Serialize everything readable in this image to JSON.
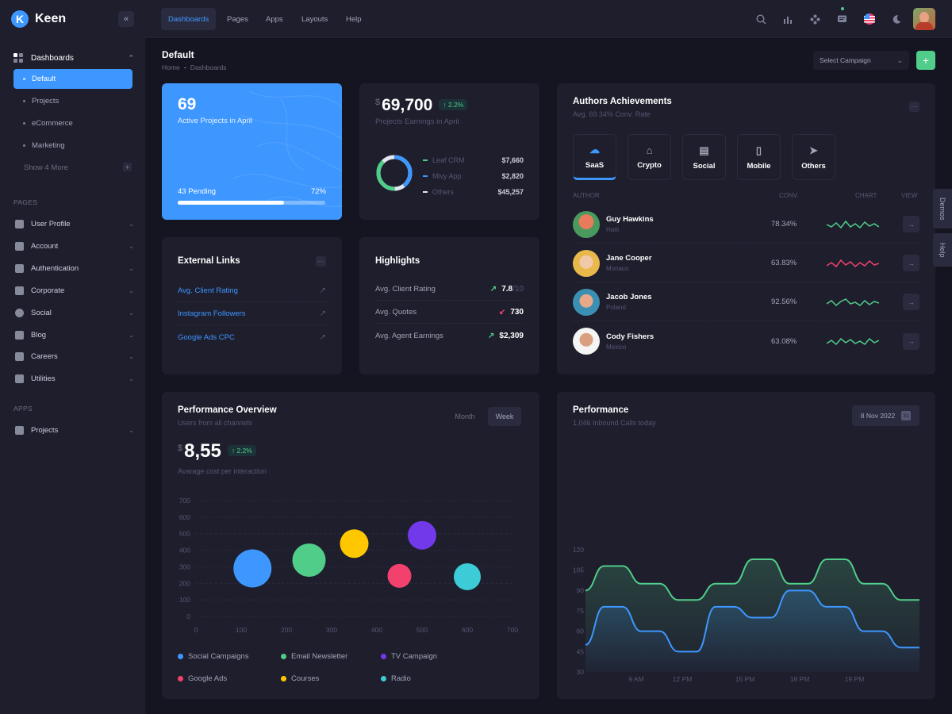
{
  "brand": {
    "name": "Keen",
    "logo_letter": "K"
  },
  "sidebar": {
    "dashboards_label": "Dashboards",
    "dashboards_sub": [
      "Default",
      "Projects",
      "eCommerce",
      "Marketing"
    ],
    "show_more": "Show 4 More",
    "pages_section": "PAGES",
    "pages_items": [
      "User Profile",
      "Account",
      "Authentication",
      "Corporate",
      "Social",
      "Blog",
      "Careers",
      "Utilities"
    ],
    "apps_section": "APPS",
    "apps_items": [
      "Projects"
    ]
  },
  "topbar": {
    "nav": [
      "Dashboards",
      "Pages",
      "Apps",
      "Layouts",
      "Help"
    ],
    "icons": [
      "search-icon",
      "chart-icon",
      "apps-icon",
      "chat-icon",
      "flag-icon",
      "moon-icon"
    ]
  },
  "page": {
    "title": "Default",
    "breadcrumb": [
      "Home",
      "Dashboards"
    ],
    "campaign_select": "Select Campaign",
    "add_button": "+"
  },
  "projects_card": {
    "count": "69",
    "label": "Active Projects in April",
    "pending": "43 Pending",
    "percent": "72%",
    "progress": 0.72
  },
  "earnings_card": {
    "currency": "$",
    "amount": "69,700",
    "badge": "2.2%",
    "label": "Projects Earnings in April",
    "items": [
      {
        "name": "Leaf CRM",
        "value": "$7,660",
        "color": "#50cd89"
      },
      {
        "name": "Mivy App",
        "value": "$2,820",
        "color": "#3e97ff"
      },
      {
        "name": "Others",
        "value": "$45,257",
        "color": "#e4e6ef"
      }
    ]
  },
  "external_links": {
    "title": "External Links",
    "links": [
      "Avg. Client Rating",
      "Instagram Followers",
      "Google Ads CPC"
    ]
  },
  "highlights": {
    "title": "Highlights",
    "rows": [
      {
        "label": "Avg. Client Rating",
        "value": "7.8",
        "suffix": "/10",
        "dir": "up"
      },
      {
        "label": "Avg. Quotes",
        "value": "730",
        "suffix": "",
        "dir": "down"
      },
      {
        "label": "Avg. Agent Earnings",
        "value": "$2,309",
        "suffix": "",
        "dir": "up"
      }
    ]
  },
  "authors": {
    "title": "Authors Achievements",
    "subtitle": "Avg. 69.34% Conv. Rate",
    "tabs": [
      "SaaS",
      "Crypto",
      "Social",
      "Mobile",
      "Others"
    ],
    "columns": [
      "AUTHOR",
      "CONV.",
      "CHART",
      "VIEW"
    ],
    "rows": [
      {
        "name": "Guy Hawkins",
        "country": "Haiti",
        "conv": "78.34%",
        "color": "#50cd89"
      },
      {
        "name": "Jane Cooper",
        "country": "Monaco",
        "conv": "63.83%",
        "color": "#f1416c"
      },
      {
        "name": "Jacob Jones",
        "country": "Poland",
        "conv": "92.56%",
        "color": "#50cd89"
      },
      {
        "name": "Cody Fishers",
        "country": "Mexico",
        "conv": "63.08%",
        "color": "#50cd89"
      }
    ]
  },
  "performance_overview": {
    "title": "Performance Overview",
    "subtitle": "Users from all channels",
    "toggle": [
      "Month",
      "Week"
    ],
    "currency": "$",
    "amount": "8,55",
    "badge": "2.2%",
    "caption": "Avarage cost per interaction"
  },
  "performance": {
    "title": "Performance",
    "subtitle": "1,046 Inbound Calls today",
    "date": "8 Nov 2022",
    "calendar_day": "31"
  },
  "side_tabs": [
    "Demos",
    "Help"
  ],
  "chart_data": [
    {
      "type": "scatter",
      "title": "",
      "xlim": [
        0,
        700
      ],
      "ylim": [
        0,
        700
      ],
      "xticks": [
        0,
        100,
        200,
        300,
        400,
        500,
        600,
        700
      ],
      "yticks": [
        0,
        100,
        200,
        300,
        400,
        500,
        600,
        700
      ],
      "series": [
        {
          "name": "Social Campaigns",
          "color": "#3e97ff",
          "x": 125,
          "y": 290,
          "size": 24
        },
        {
          "name": "Email Newsletter",
          "color": "#50cd89",
          "x": 250,
          "y": 340,
          "size": 21
        },
        {
          "name": "TV Campaign",
          "color": "#7239ea",
          "x": 500,
          "y": 490,
          "size": 18
        },
        {
          "name": "Google Ads",
          "color": "#f1416c",
          "x": 450,
          "y": 245,
          "size": 15
        },
        {
          "name": "Courses",
          "color": "#ffc700",
          "x": 350,
          "y": 440,
          "size": 18
        },
        {
          "name": "Radio",
          "color": "#3ccbd7",
          "x": 600,
          "y": 240,
          "size": 17
        }
      ]
    },
    {
      "type": "area",
      "title": "",
      "ylim": [
        30,
        120
      ],
      "yticks": [
        30,
        45,
        60,
        75,
        90,
        105,
        120
      ],
      "xticks": [
        "9 AM",
        "12 PM",
        "15 PM",
        "18 PM",
        "19 PM"
      ],
      "series": [
        {
          "name": "",
          "color": "#50cd89",
          "values": [
            90,
            108,
            108,
            95,
            95,
            83,
            83,
            95,
            95,
            113,
            113,
            95,
            95,
            113,
            113,
            95,
            95,
            83,
            83
          ]
        },
        {
          "name": "",
          "color": "#3e97ff",
          "values": [
            50,
            78,
            78,
            60,
            60,
            45,
            45,
            78,
            78,
            70,
            70,
            90,
            90,
            78,
            78,
            60,
            60,
            48,
            48
          ]
        }
      ]
    }
  ]
}
